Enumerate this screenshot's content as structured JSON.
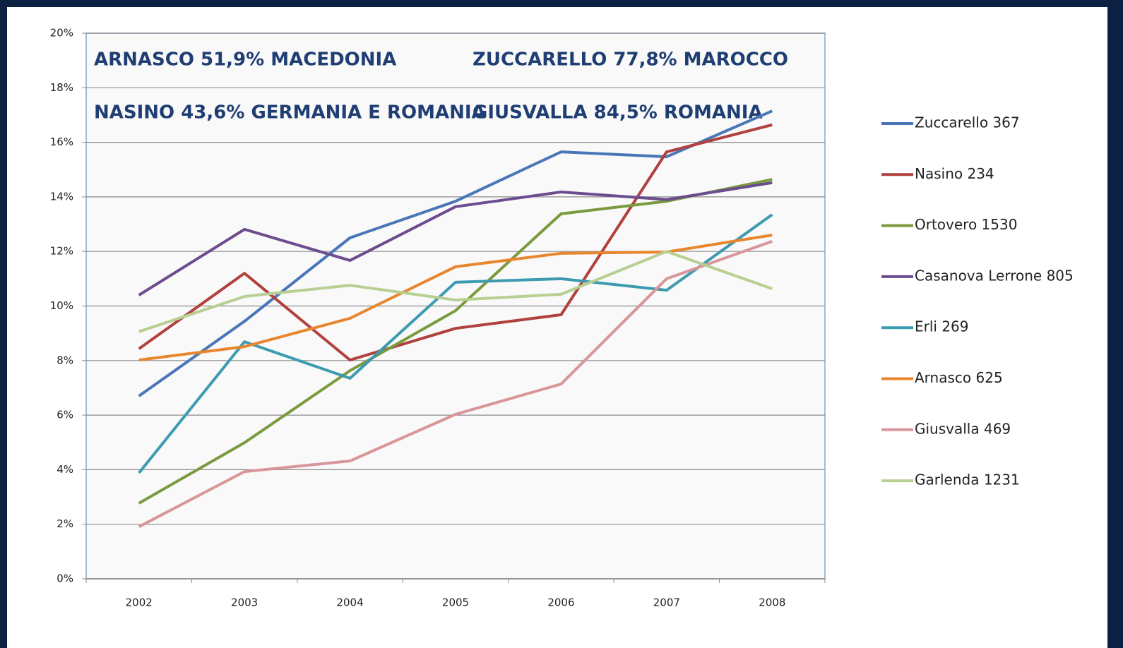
{
  "chart_data": {
    "type": "line",
    "categories": [
      "2002",
      "2003",
      "2004",
      "2005",
      "2006",
      "2007",
      "2008"
    ],
    "annotations": [
      "ARNASCO 51,9% MACEDONIA",
      "ZUCCARELLO 77,8% MAROCCO",
      "NASINO 43,6% GERMANIA E ROMANIA",
      "GIUSVALLA 84,5% ROMANIA"
    ],
    "series": [
      {
        "name": "Zuccarello 367",
        "color": "#4a76b8",
        "values": [
          6.7,
          9.44,
          12.5,
          13.84,
          15.65,
          15.47,
          17.15
        ]
      },
      {
        "name": "Nasino 234",
        "color": "#b0413e",
        "values": [
          8.43,
          11.2,
          8.02,
          9.18,
          9.68,
          15.65,
          16.64
        ]
      },
      {
        "name": "Ortovero 1530",
        "color": "#7a9a3e",
        "values": [
          2.77,
          4.99,
          7.63,
          9.83,
          13.38,
          13.84,
          14.64
        ]
      },
      {
        "name": "Casanova Lerrone 805",
        "color": "#6b4c8f",
        "values": [
          10.4,
          12.81,
          11.67,
          13.64,
          14.18,
          13.9,
          14.52
        ]
      },
      {
        "name": "Erli 269",
        "color": "#3d9bb0",
        "values": [
          3.88,
          8.69,
          7.35,
          10.87,
          11.0,
          10.58,
          13.35
        ]
      },
      {
        "name": "Arnasco 625",
        "color": "#e8862f",
        "values": [
          8.02,
          8.51,
          9.55,
          11.44,
          11.93,
          11.98,
          12.6
        ]
      },
      {
        "name": "Giusvalla 469",
        "color": "#d9969a",
        "values": [
          1.91,
          3.93,
          4.32,
          6.03,
          7.14,
          11.0,
          12.37
        ]
      },
      {
        "name": "Garlenda 1231",
        "color": "#b8cf92",
        "values": [
          9.06,
          10.35,
          10.76,
          10.22,
          10.43,
          12.0,
          10.63
        ]
      }
    ],
    "ylim": [
      0,
      20
    ],
    "yticks": [
      {
        "value": 0,
        "label": "0%"
      },
      {
        "value": 2,
        "label": "2%"
      },
      {
        "value": 4,
        "label": "4%"
      },
      {
        "value": 6,
        "label": "6%"
      },
      {
        "value": 8,
        "label": "8%"
      },
      {
        "value": 10,
        "label": "10%"
      },
      {
        "value": 12,
        "label": "12%"
      },
      {
        "value": 14,
        "label": "14%"
      },
      {
        "value": 16,
        "label": "16%"
      },
      {
        "value": 18,
        "label": "18%"
      },
      {
        "value": 20,
        "label": "20%"
      }
    ],
    "grid": true,
    "legend": "right"
  }
}
